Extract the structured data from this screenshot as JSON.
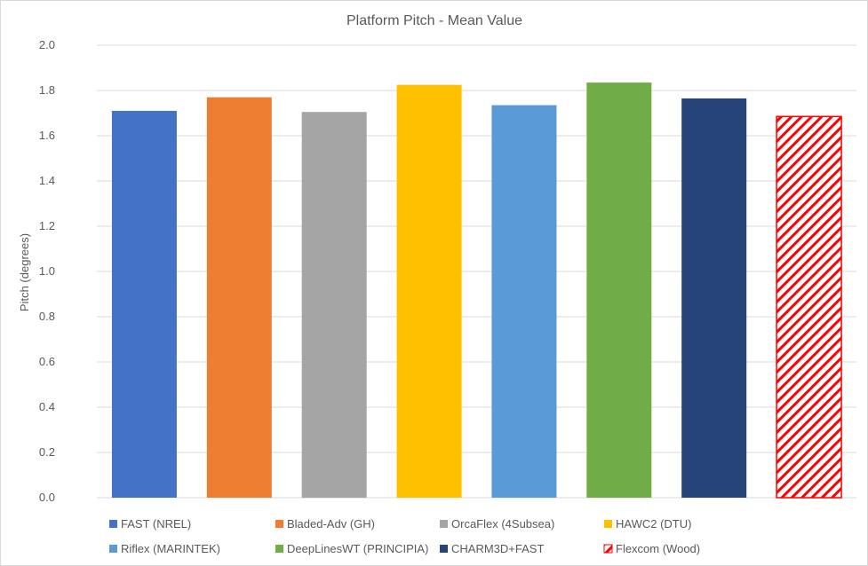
{
  "chart_data": {
    "type": "bar",
    "title": "Platform Pitch - Mean Value",
    "xlabel": "",
    "ylabel": "Pitch (degrees)",
    "ylim": [
      0,
      2.0
    ],
    "ytick_step": 0.2,
    "y_ticks": [
      "0.0",
      "0.2",
      "0.4",
      "0.6",
      "0.8",
      "1.0",
      "1.2",
      "1.4",
      "1.6",
      "1.8",
      "2.0"
    ],
    "grid": true,
    "legend_position": "bottom",
    "series": [
      {
        "name": "FAST (NREL)",
        "value": 1.71,
        "color": "#4472C4",
        "pattern": "solid"
      },
      {
        "name": "Bladed-Adv (GH)",
        "value": 1.77,
        "color": "#ED7D31",
        "pattern": "solid"
      },
      {
        "name": "OrcaFlex (4Subsea)",
        "value": 1.705,
        "color": "#A5A5A5",
        "pattern": "solid"
      },
      {
        "name": "HAWC2 (DTU)",
        "value": 1.825,
        "color": "#FFC000",
        "pattern": "solid"
      },
      {
        "name": "Riflex (MARINTEK)",
        "value": 1.735,
        "color": "#5B9BD5",
        "pattern": "solid"
      },
      {
        "name": "DeepLinesWT (PRINCIPIA)",
        "value": 1.835,
        "color": "#70AD47",
        "pattern": "solid"
      },
      {
        "name": "CHARM3D+FAST",
        "value": 1.765,
        "color": "#264478",
        "pattern": "solid"
      },
      {
        "name": "Flexcom (Wood)",
        "value": 1.685,
        "color": "#FF0000",
        "pattern": "diagonal-hatch"
      }
    ]
  }
}
